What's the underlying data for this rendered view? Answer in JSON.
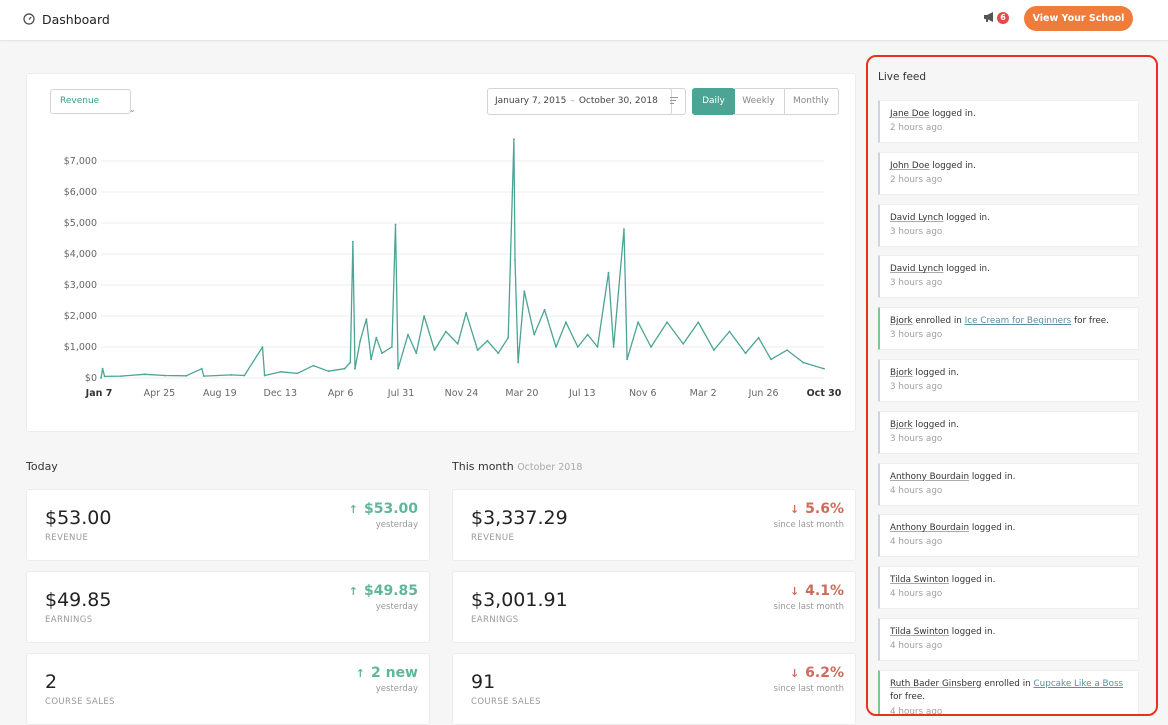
{
  "header": {
    "title": "Dashboard",
    "notification_count": "6",
    "cta_label": "View Your School"
  },
  "chart_controls": {
    "metric": "Revenue",
    "date_from": "January 7, 2015",
    "date_sep": "–",
    "date_to": "October 30, 2018",
    "periods": [
      "Daily",
      "Weekly",
      "Monthly"
    ],
    "active_period": "Daily"
  },
  "chart_data": {
    "type": "line",
    "title": "",
    "xlabel": "",
    "ylabel": "",
    "ylim": [
      0,
      7000
    ],
    "y_ticks": [
      "$0",
      "$1,000",
      "$2,000",
      "$3,000",
      "$4,000",
      "$5,000",
      "$6,000",
      "$7,000"
    ],
    "x_ticks": [
      "Jan 7",
      "Apr 25",
      "Aug 19",
      "Dec 13",
      "Apr 6",
      "Jul 31",
      "Nov 24",
      "Mar 20",
      "Jul 13",
      "Nov 6",
      "Mar 2",
      "Jun 26",
      "Oct 30"
    ],
    "x_tick_bold": [
      "Jan 7",
      "Oct 30"
    ],
    "color": "#4ba494",
    "grid": true,
    "series": [
      {
        "x_range": [
          "2015-01-07",
          "2018-10-30"
        ],
        "values": [
          {
            "x": "2015-01-07",
            "y": 0
          },
          {
            "x": "2015-01-10",
            "y": 300
          },
          {
            "x": "2015-01-14",
            "y": 50
          },
          {
            "x": "2015-02-15",
            "y": 60
          },
          {
            "x": "2015-04-01",
            "y": 120
          },
          {
            "x": "2015-05-10",
            "y": 80
          },
          {
            "x": "2015-06-20",
            "y": 70
          },
          {
            "x": "2015-07-20",
            "y": 300
          },
          {
            "x": "2015-07-24",
            "y": 60
          },
          {
            "x": "2015-09-15",
            "y": 100
          },
          {
            "x": "2015-10-10",
            "y": 80
          },
          {
            "x": "2015-11-14",
            "y": 1000
          },
          {
            "x": "2015-11-18",
            "y": 80
          },
          {
            "x": "2015-12-20",
            "y": 200
          },
          {
            "x": "2016-01-20",
            "y": 150
          },
          {
            "x": "2016-02-20",
            "y": 400
          },
          {
            "x": "2016-03-20",
            "y": 220
          },
          {
            "x": "2016-04-20",
            "y": 300
          },
          {
            "x": "2016-05-01",
            "y": 500
          },
          {
            "x": "2016-05-06",
            "y": 4400
          },
          {
            "x": "2016-05-10",
            "y": 300
          },
          {
            "x": "2016-05-20",
            "y": 1200
          },
          {
            "x": "2016-06-01",
            "y": 1900
          },
          {
            "x": "2016-06-10",
            "y": 600
          },
          {
            "x": "2016-06-20",
            "y": 1300
          },
          {
            "x": "2016-07-01",
            "y": 800
          },
          {
            "x": "2016-07-20",
            "y": 1000
          },
          {
            "x": "2016-07-27",
            "y": 4950
          },
          {
            "x": "2016-08-01",
            "y": 300
          },
          {
            "x": "2016-08-20",
            "y": 1400
          },
          {
            "x": "2016-09-05",
            "y": 800
          },
          {
            "x": "2016-09-20",
            "y": 2000
          },
          {
            "x": "2016-10-10",
            "y": 900
          },
          {
            "x": "2016-11-01",
            "y": 1500
          },
          {
            "x": "2016-11-24",
            "y": 1100
          },
          {
            "x": "2016-12-10",
            "y": 2100
          },
          {
            "x": "2017-01-01",
            "y": 900
          },
          {
            "x": "2017-01-20",
            "y": 1200
          },
          {
            "x": "2017-02-10",
            "y": 800
          },
          {
            "x": "2017-03-01",
            "y": 1300
          },
          {
            "x": "2017-03-12",
            "y": 7700
          },
          {
            "x": "2017-03-14",
            "y": 3800
          },
          {
            "x": "2017-03-20",
            "y": 500
          },
          {
            "x": "2017-04-01",
            "y": 2800
          },
          {
            "x": "2017-04-20",
            "y": 1400
          },
          {
            "x": "2017-05-10",
            "y": 2200
          },
          {
            "x": "2017-06-01",
            "y": 1000
          },
          {
            "x": "2017-06-20",
            "y": 1800
          },
          {
            "x": "2017-07-13",
            "y": 1000
          },
          {
            "x": "2017-08-01",
            "y": 1400
          },
          {
            "x": "2017-08-20",
            "y": 1000
          },
          {
            "x": "2017-09-10",
            "y": 3400
          },
          {
            "x": "2017-09-20",
            "y": 1000
          },
          {
            "x": "2017-10-10",
            "y": 4800
          },
          {
            "x": "2017-10-16",
            "y": 600
          },
          {
            "x": "2017-11-06",
            "y": 1800
          },
          {
            "x": "2017-12-01",
            "y": 1000
          },
          {
            "x": "2018-01-01",
            "y": 1800
          },
          {
            "x": "2018-02-01",
            "y": 1100
          },
          {
            "x": "2018-03-02",
            "y": 1800
          },
          {
            "x": "2018-04-01",
            "y": 900
          },
          {
            "x": "2018-05-01",
            "y": 1500
          },
          {
            "x": "2018-06-01",
            "y": 800
          },
          {
            "x": "2018-06-26",
            "y": 1300
          },
          {
            "x": "2018-07-20",
            "y": 600
          },
          {
            "x": "2018-08-20",
            "y": 900
          },
          {
            "x": "2018-09-20",
            "y": 500
          },
          {
            "x": "2018-10-30",
            "y": 300
          }
        ]
      }
    ]
  },
  "today": {
    "heading": "Today",
    "cards": [
      {
        "value": "$53.00",
        "label": "REVENUE",
        "change": "$53.00",
        "change_sub": "yesterday",
        "direction": "up"
      },
      {
        "value": "$49.85",
        "label": "EARNINGS",
        "change": "$49.85",
        "change_sub": "yesterday",
        "direction": "up"
      },
      {
        "value": "2",
        "label": "COURSE SALES",
        "change": "2 new",
        "change_sub": "yesterday",
        "direction": "up"
      }
    ]
  },
  "month": {
    "heading": "This month",
    "subheading": "October 2018",
    "cards": [
      {
        "value": "$3,337.29",
        "label": "REVENUE",
        "change": "5.6%",
        "change_sub": "since last month",
        "direction": "down"
      },
      {
        "value": "$3,001.91",
        "label": "EARNINGS",
        "change": "4.1%",
        "change_sub": "since last month",
        "direction": "down"
      },
      {
        "value": "91",
        "label": "COURSE SALES",
        "change": "6.2%",
        "change_sub": "since last month",
        "direction": "down"
      }
    ]
  },
  "feed": {
    "title": "Live feed",
    "items": [
      {
        "user": "Jane Doe",
        "action": " logged in.",
        "time": "2 hours ago"
      },
      {
        "user": "John Doe",
        "action": " logged in.",
        "time": "2 hours ago"
      },
      {
        "user": "David Lynch",
        "action": " logged in.",
        "time": "3 hours ago"
      },
      {
        "user": "David Lynch",
        "action": " logged in.",
        "time": "3 hours ago"
      },
      {
        "user": "Bjork",
        "action": " enrolled in ",
        "course": "Ice Cream for Beginners",
        "suffix": " for free.",
        "time": "3 hours ago"
      },
      {
        "user": "Bjork",
        "action": " logged in.",
        "time": "3 hours ago"
      },
      {
        "user": "Bjork",
        "action": " logged in.",
        "time": "3 hours ago"
      },
      {
        "user": "Anthony Bourdain",
        "action": " logged in.",
        "time": "4 hours ago"
      },
      {
        "user": "Anthony Bourdain",
        "action": " logged in.",
        "time": "4 hours ago"
      },
      {
        "user": "Tilda Swinton",
        "action": " logged in.",
        "time": "4 hours ago"
      },
      {
        "user": "Tilda Swinton",
        "action": " logged in.",
        "time": "4 hours ago"
      },
      {
        "user": "Ruth Bader Ginsberg",
        "action": " enrolled in ",
        "course": "Cupcake Like a Boss",
        "suffix": " for free.",
        "time": "4 hours ago"
      }
    ]
  },
  "colors": {
    "accent": "#4ba494",
    "cta": "#f07c3c",
    "up": "#5fb79b",
    "down": "#cf6b59",
    "highlight": "#e8321e"
  }
}
